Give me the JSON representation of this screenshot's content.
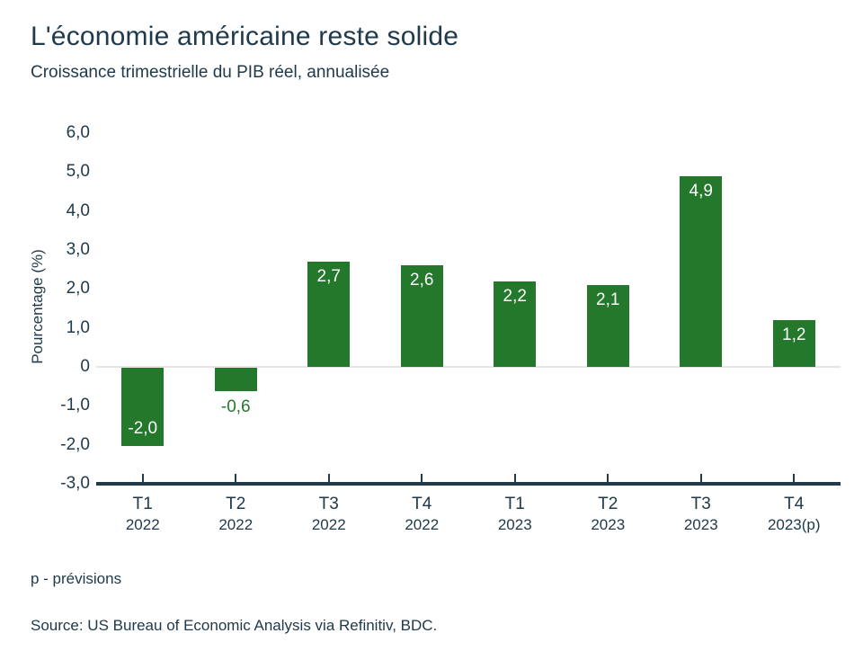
{
  "page": {
    "footnote": "p - prévisions",
    "source": "Source: US Bureau of Economic Analysis via Refinitiv, BDC."
  },
  "colors": {
    "bar": "#23782b",
    "text": "#203a4c",
    "bar_label_inside": "#ffffff",
    "bar_label_outside": "#23782b",
    "zero_line": "#e8e3de",
    "axis_line": "#203a4c"
  },
  "chart_data": {
    "type": "bar",
    "title": "L'économie américaine reste solide",
    "subtitle": "Croissance trimestrielle du PIB réel, annualisée",
    "ylabel": "Pourcentage (%)",
    "xlabel": "",
    "ylim": [
      -3.0,
      6.0
    ],
    "ytick_interval": 1.0,
    "ytick_labels": [
      "6,0",
      "5,0",
      "4,0",
      "3,0",
      "2,0",
      "1,0",
      "0",
      "-1,0",
      "-2,0",
      "-3,0"
    ],
    "grid": false,
    "legend": "none",
    "categories": [
      {
        "quarter": "T1",
        "year": "2022"
      },
      {
        "quarter": "T2",
        "year": "2022"
      },
      {
        "quarter": "T3",
        "year": "2022"
      },
      {
        "quarter": "T4",
        "year": "2022"
      },
      {
        "quarter": "T1",
        "year": "2023"
      },
      {
        "quarter": "T2",
        "year": "2023"
      },
      {
        "quarter": "T3",
        "year": "2023"
      },
      {
        "quarter": "T4",
        "year": "2023(p)"
      }
    ],
    "values": [
      -2.0,
      -0.6,
      2.7,
      2.6,
      2.2,
      2.1,
      4.9,
      1.2
    ],
    "value_labels": [
      "-2,0",
      "-0,6",
      "2,7",
      "2,6",
      "2,2",
      "2,1",
      "4,9",
      "1,2"
    ]
  }
}
